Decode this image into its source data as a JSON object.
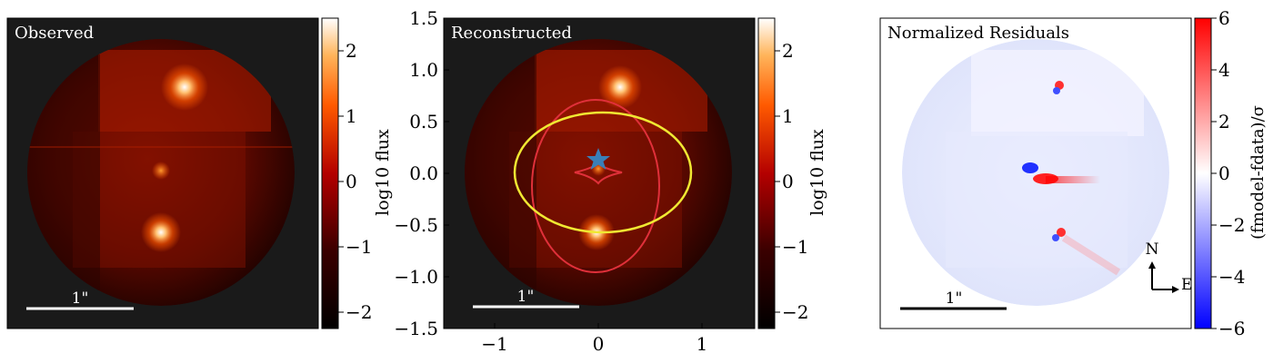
{
  "panels": {
    "observed": {
      "title": "Observed",
      "scalebar": "1\""
    },
    "reconstructed": {
      "title": "Reconstructed",
      "scalebar": "1\""
    },
    "residuals": {
      "title": "Normalized Residuals",
      "scalebar": "1\""
    }
  },
  "colorbars": {
    "flux": {
      "label": "log10 flux",
      "ticks": [
        "2",
        "1",
        "0",
        "−1",
        "−2"
      ]
    },
    "residual": {
      "label": "(fmodel-fdata)/σ",
      "ticks": [
        "6",
        "4",
        "2",
        "0",
        "−2",
        "−4",
        "−6"
      ]
    }
  },
  "axes": {
    "y_ticks": [
      "1.5",
      "1.0",
      "0.5",
      "0.0",
      "−0.5",
      "−1.0",
      "−1.5"
    ],
    "x_ticks": [
      "−1",
      "0",
      "1"
    ]
  },
  "compass": {
    "north": "N",
    "east": "E"
  },
  "colors": {
    "background": "#1a1a1a",
    "flux_low": "#000000",
    "flux_mid": "#b40000",
    "flux_high": "#ffffff",
    "caustic": "#e0303a",
    "critical_curve": "#f0e832",
    "source_marker": "#3a7fb8",
    "res_neg": "#0000ff",
    "res_pos": "#ff0000"
  }
}
